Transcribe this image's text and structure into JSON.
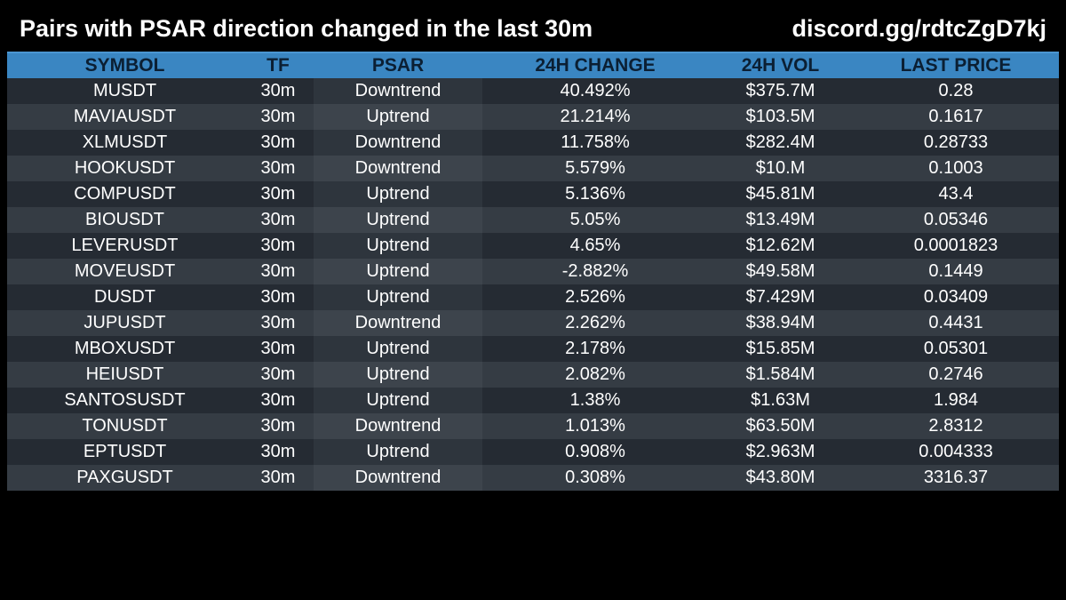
{
  "header": {
    "title": "Pairs with PSAR direction changed in the last 30m",
    "link": "discord.gg/rdtcZgD7kj"
  },
  "table": {
    "columns": [
      "SYMBOL",
      "TF",
      "PSAR",
      "24H CHANGE",
      "24H VOL",
      "LAST PRICE"
    ],
    "rows": [
      {
        "symbol": "MUSDT",
        "tf": "30m",
        "psar": "Downtrend",
        "change": "40.492%",
        "vol": "$375.7M",
        "price": "0.28"
      },
      {
        "symbol": "MAVIAUSDT",
        "tf": "30m",
        "psar": "Uptrend",
        "change": "21.214%",
        "vol": "$103.5M",
        "price": "0.1617"
      },
      {
        "symbol": "XLMUSDT",
        "tf": "30m",
        "psar": "Downtrend",
        "change": "11.758%",
        "vol": "$282.4M",
        "price": "0.28733"
      },
      {
        "symbol": "HOOKUSDT",
        "tf": "30m",
        "psar": "Downtrend",
        "change": "5.579%",
        "vol": "$10.M",
        "price": "0.1003"
      },
      {
        "symbol": "COMPUSDT",
        "tf": "30m",
        "psar": "Uptrend",
        "change": "5.136%",
        "vol": "$45.81M",
        "price": "43.4"
      },
      {
        "symbol": "BIOUSDT",
        "tf": "30m",
        "psar": "Uptrend",
        "change": "5.05%",
        "vol": "$13.49M",
        "price": "0.05346"
      },
      {
        "symbol": "LEVERUSDT",
        "tf": "30m",
        "psar": "Uptrend",
        "change": "4.65%",
        "vol": "$12.62M",
        "price": "0.0001823"
      },
      {
        "symbol": "MOVEUSDT",
        "tf": "30m",
        "psar": "Uptrend",
        "change": "-2.882%",
        "vol": "$49.58M",
        "price": "0.1449"
      },
      {
        "symbol": "DUSDT",
        "tf": "30m",
        "psar": "Uptrend",
        "change": "2.526%",
        "vol": "$7.429M",
        "price": "0.03409"
      },
      {
        "symbol": "JUPUSDT",
        "tf": "30m",
        "psar": "Downtrend",
        "change": "2.262%",
        "vol": "$38.94M",
        "price": "0.4431"
      },
      {
        "symbol": "MBOXUSDT",
        "tf": "30m",
        "psar": "Uptrend",
        "change": "2.178%",
        "vol": "$15.85M",
        "price": "0.05301"
      },
      {
        "symbol": "HEIUSDT",
        "tf": "30m",
        "psar": "Uptrend",
        "change": "2.082%",
        "vol": "$1.584M",
        "price": "0.2746"
      },
      {
        "symbol": "SANTOSUSDT",
        "tf": "30m",
        "psar": "Uptrend",
        "change": "1.38%",
        "vol": "$1.63M",
        "price": "1.984"
      },
      {
        "symbol": "TONUSDT",
        "tf": "30m",
        "psar": "Downtrend",
        "change": "1.013%",
        "vol": "$63.50M",
        "price": "2.8312"
      },
      {
        "symbol": "EPTUSDT",
        "tf": "30m",
        "psar": "Uptrend",
        "change": "0.908%",
        "vol": "$2.963M",
        "price": "0.004333"
      },
      {
        "symbol": "PAXGUSDT",
        "tf": "30m",
        "psar": "Downtrend",
        "change": "0.308%",
        "vol": "$43.80M",
        "price": "3316.37"
      }
    ]
  },
  "colors": {
    "background": "#000000",
    "header_row": "#3a86c2",
    "row_dark": "#252b33",
    "row_light": "#353c44"
  }
}
